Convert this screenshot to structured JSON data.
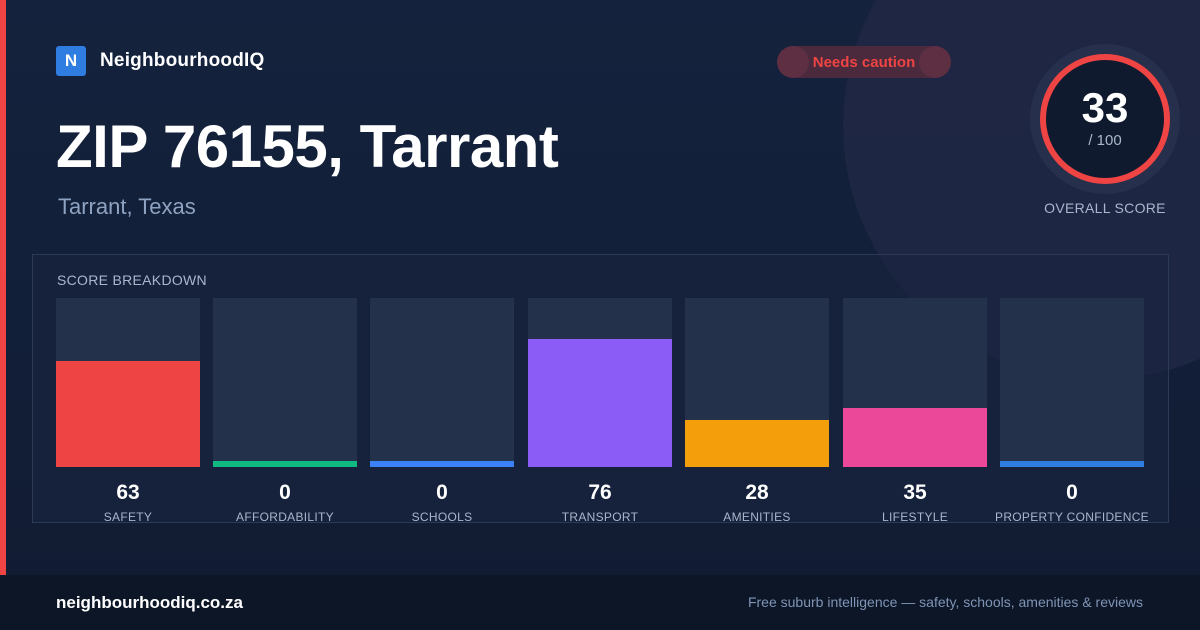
{
  "brand": {
    "logo_letter": "N",
    "name": "NeighbourhoodIQ"
  },
  "status": {
    "label": "Needs caution",
    "color": "#ef4444"
  },
  "location": {
    "title": "ZIP 76155, Tarrant",
    "subtitle": "Tarrant, Texas"
  },
  "overall": {
    "score": "33",
    "max": "/ 100",
    "label": "OVERALL SCORE",
    "fraction": 0.33,
    "ring_color": "#ef4444"
  },
  "breakdown": {
    "title": "SCORE BREAKDOWN",
    "categories": [
      {
        "label": "SAFETY",
        "value": "63",
        "score": 63,
        "color": "#ef4444"
      },
      {
        "label": "AFFORDABILITY",
        "value": "0",
        "score": 0,
        "color": "#10b981"
      },
      {
        "label": "SCHOOLS",
        "value": "0",
        "score": 0,
        "color": "#3b82f6"
      },
      {
        "label": "TRANSPORT",
        "value": "76",
        "score": 76,
        "color": "#8b5cf6"
      },
      {
        "label": "AMENITIES",
        "value": "28",
        "score": 28,
        "color": "#f59e0b"
      },
      {
        "label": "LIFESTYLE",
        "value": "35",
        "score": 35,
        "color": "#ec4899"
      },
      {
        "label": "PROPERTY CONFIDENCE",
        "value": "0",
        "score": 0,
        "color": "#2f7de1"
      }
    ]
  },
  "footer": {
    "domain": "neighbourhoodiq.co.za",
    "tagline": "Free suburb intelligence — safety, schools, amenities & reviews"
  }
}
